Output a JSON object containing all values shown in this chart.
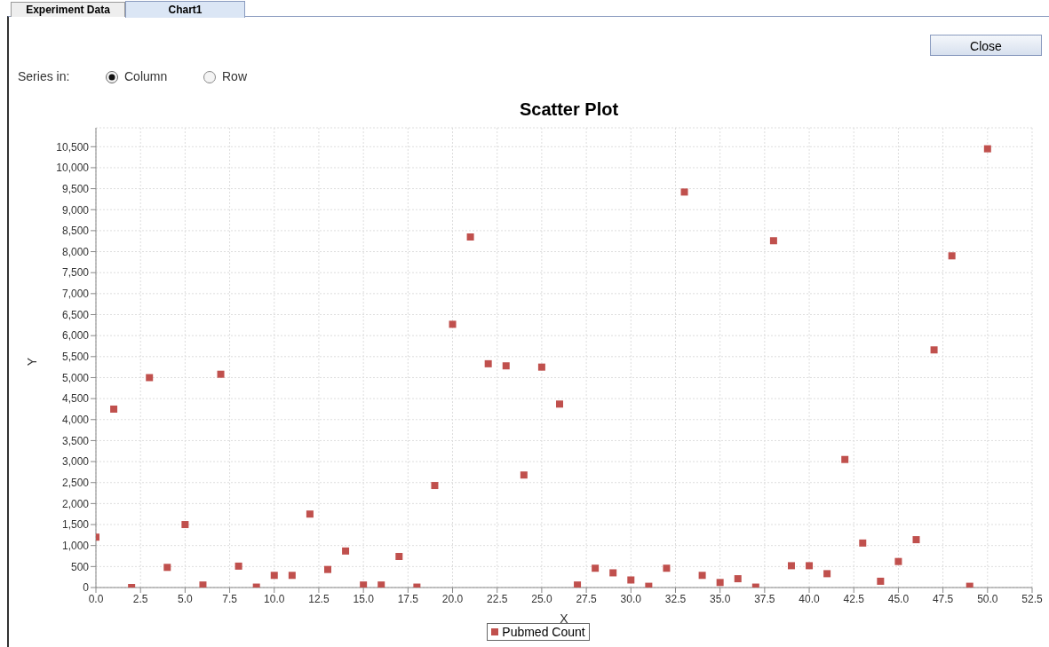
{
  "chart_data": {
    "type": "scatter",
    "title": "Scatter Plot",
    "xlabel": "X",
    "ylabel": "Y",
    "annotations": [
      "Experiment Data",
      "Chart1",
      "Close",
      "Series in:",
      "Column",
      "Row"
    ],
    "x": [
      0,
      1,
      2,
      3,
      4,
      5,
      6,
      7,
      8,
      9,
      10,
      11,
      12,
      13,
      14,
      15,
      16,
      17,
      18,
      19,
      20,
      21,
      22,
      23,
      24,
      25,
      26,
      27,
      28,
      29,
      30,
      31,
      32,
      33,
      34,
      35,
      36,
      37,
      38,
      39,
      40,
      41,
      42,
      43,
      44,
      45,
      46,
      47,
      48,
      49,
      50
    ],
    "series": [
      {
        "name": "Pubmed Count",
        "color": "#c0504d",
        "values": [
          1200,
          4250,
          0,
          5000,
          480,
          1500,
          60,
          5080,
          510,
          10,
          290,
          290,
          1750,
          430,
          870,
          60,
          60,
          740,
          10,
          2430,
          6270,
          8350,
          5330,
          5280,
          2680,
          5250,
          4370,
          60,
          460,
          350,
          180,
          30,
          460,
          9420,
          290,
          120,
          210,
          10,
          8260,
          520,
          520,
          330,
          3050,
          1060,
          150,
          620,
          1140,
          5660,
          7900,
          30,
          10450
        ]
      }
    ],
    "xlim": [
      0,
      52.5
    ],
    "xticks": [
      {
        "value": 0,
        "label": "0.0"
      },
      2.5,
      {
        "value": 5,
        "label": "5.0"
      },
      7.5,
      {
        "value": 10,
        "label": "10.0"
      },
      12.5,
      {
        "value": 15,
        "label": "15.0"
      },
      17.5,
      {
        "value": 20,
        "label": "20.0"
      },
      22.5,
      {
        "value": 25,
        "label": "25.0"
      },
      27.5,
      {
        "value": 30,
        "label": "30.0"
      },
      32.5,
      {
        "value": 35,
        "label": "35.0"
      },
      37.5,
      {
        "value": 40,
        "label": "40.0"
      },
      42.5,
      {
        "value": 45,
        "label": "45.0"
      },
      47.5,
      {
        "value": 50,
        "label": "50.0"
      },
      52.5
    ],
    "ylim": [
      0,
      10950
    ],
    "yticks": [
      0,
      500,
      {
        "value": 1000,
        "label": "1,000"
      },
      {
        "value": 1500,
        "label": "1,500"
      },
      {
        "value": 2000,
        "label": "2,000"
      },
      {
        "value": 2500,
        "label": "2,500"
      },
      {
        "value": 3000,
        "label": "3,000"
      },
      {
        "value": 3500,
        "label": "3,500"
      },
      {
        "value": 4000,
        "label": "4,000"
      },
      {
        "value": 4500,
        "label": "4,500"
      },
      {
        "value": 5000,
        "label": "5,000"
      },
      {
        "value": 5500,
        "label": "5,500"
      },
      {
        "value": 6000,
        "label": "6,000"
      },
      {
        "value": 6500,
        "label": "6,500"
      },
      {
        "value": 7000,
        "label": "7,000"
      },
      {
        "value": 7500,
        "label": "7,500"
      },
      {
        "value": 8000,
        "label": "8,000"
      },
      {
        "value": 8500,
        "label": "8,500"
      },
      {
        "value": 9000,
        "label": "9,000"
      },
      {
        "value": 9500,
        "label": "9,500"
      },
      {
        "value": 10000,
        "label": "10,000"
      },
      {
        "value": 10500,
        "label": "10,500"
      }
    ],
    "grid": true,
    "legend": "bottom",
    "marker": "square"
  }
}
